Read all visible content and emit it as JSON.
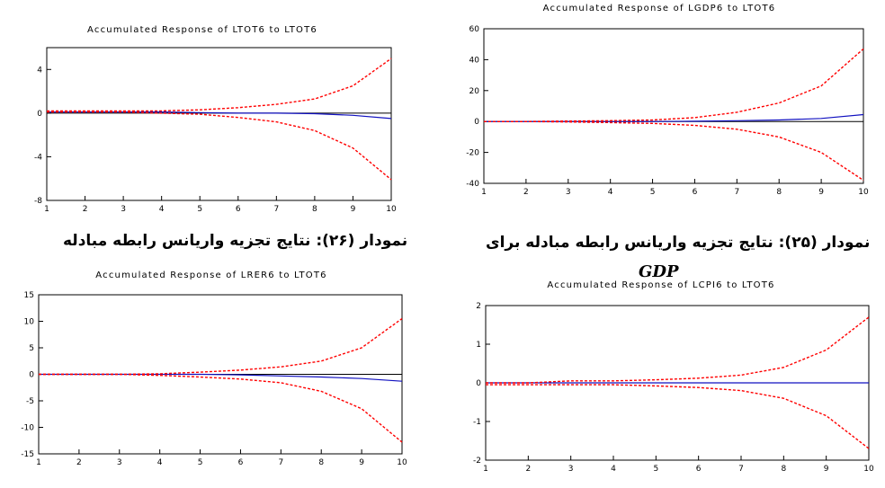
{
  "captions": {
    "left": "نمودار (۲۶): نتایج تجزیه واریانس رابطه مبادله",
    "right": "نمودار (۲۵): نتایج تجزیه واریانس رابطه مبادله  برای",
    "right_sub": "GDP"
  },
  "colors": {
    "response": "#1010c0",
    "band": "#ff0000",
    "axis": "#000000"
  },
  "chart_data": [
    {
      "type": "line",
      "title": "Accumulated Response of LTOT6 to LTOT6",
      "x": [
        1,
        2,
        3,
        4,
        5,
        6,
        7,
        8,
        9,
        10
      ],
      "xticks": [
        1,
        2,
        3,
        4,
        5,
        6,
        7,
        8,
        9,
        10
      ],
      "ylim": [
        -8,
        6
      ],
      "yticks": [
        -8,
        -4,
        0,
        4
      ],
      "series": [
        {
          "role": "response",
          "style": "solid",
          "values": [
            0.1,
            0.1,
            0.1,
            0.1,
            0.05,
            0.0,
            0.0,
            -0.05,
            -0.2,
            -0.5
          ]
        },
        {
          "role": "upper",
          "style": "dashed",
          "values": [
            0.2,
            0.2,
            0.2,
            0.2,
            0.3,
            0.5,
            0.8,
            1.3,
            2.5,
            5.0
          ]
        },
        {
          "role": "lower",
          "style": "dashed",
          "values": [
            0.1,
            0.1,
            0.1,
            0.0,
            -0.1,
            -0.4,
            -0.8,
            -1.6,
            -3.2,
            -6.1
          ]
        }
      ]
    },
    {
      "type": "line",
      "title": "Accumulated Response of LGDP6 to LTOT6",
      "x": [
        1,
        2,
        3,
        4,
        5,
        6,
        7,
        8,
        9,
        10
      ],
      "xticks": [
        1,
        2,
        3,
        4,
        5,
        6,
        7,
        8,
        9,
        10
      ],
      "ylim": [
        -40,
        60
      ],
      "yticks": [
        -40,
        -20,
        0,
        20,
        40,
        60
      ],
      "series": [
        {
          "role": "response",
          "style": "solid",
          "values": [
            0.0,
            0.0,
            0.0,
            0.0,
            0.0,
            0.2,
            0.5,
            1.0,
            2.0,
            4.5
          ]
        },
        {
          "role": "upper",
          "style": "dashed",
          "values": [
            0.0,
            0.0,
            0.3,
            0.5,
            1.0,
            2.5,
            6.0,
            12.0,
            23.0,
            47.0
          ]
        },
        {
          "role": "lower",
          "style": "dashed",
          "values": [
            0.0,
            0.0,
            -0.3,
            -0.7,
            -1.2,
            -2.5,
            -5.0,
            -10.0,
            -20.0,
            -38.0
          ]
        }
      ]
    },
    {
      "type": "line",
      "title": "Accumulated Response of LRER6 to LTOT6",
      "x": [
        1,
        2,
        3,
        4,
        5,
        6,
        7,
        8,
        9,
        10
      ],
      "xticks": [
        1,
        2,
        3,
        4,
        5,
        6,
        7,
        8,
        9,
        10
      ],
      "ylim": [
        -15,
        15
      ],
      "yticks": [
        -15,
        -10,
        -5,
        0,
        5,
        10,
        15
      ],
      "series": [
        {
          "role": "response",
          "style": "solid",
          "values": [
            0.0,
            0.0,
            0.0,
            0.0,
            0.0,
            -0.1,
            -0.3,
            -0.5,
            -0.8,
            -1.3
          ]
        },
        {
          "role": "upper",
          "style": "dashed",
          "values": [
            0.0,
            0.0,
            0.0,
            0.1,
            0.4,
            0.8,
            1.4,
            2.5,
            5.0,
            10.5
          ]
        },
        {
          "role": "lower",
          "style": "dashed",
          "values": [
            0.0,
            0.0,
            0.0,
            -0.2,
            -0.5,
            -0.9,
            -1.6,
            -3.2,
            -6.5,
            -12.8
          ]
        }
      ]
    },
    {
      "type": "line",
      "title": "Accumulated Response of LCPI6 to LTOT6",
      "x": [
        1,
        2,
        3,
        4,
        5,
        6,
        7,
        8,
        9,
        10
      ],
      "xticks": [
        1,
        2,
        3,
        4,
        5,
        6,
        7,
        8,
        9,
        10
      ],
      "ylim": [
        -2,
        2
      ],
      "yticks": [
        -2,
        -1,
        0,
        1,
        2
      ],
      "series": [
        {
          "role": "response",
          "style": "solid",
          "values": [
            0.0,
            0.0,
            0.0,
            0.0,
            0.0,
            0.0,
            0.0,
            0.0,
            0.0,
            0.0
          ]
        },
        {
          "role": "upper",
          "style": "dashed",
          "values": [
            0.0,
            0.0,
            0.05,
            0.05,
            0.08,
            0.12,
            0.2,
            0.4,
            0.85,
            1.7
          ]
        },
        {
          "role": "lower",
          "style": "dashed",
          "values": [
            -0.05,
            -0.05,
            -0.05,
            -0.05,
            -0.08,
            -0.12,
            -0.2,
            -0.4,
            -0.85,
            -1.7
          ]
        }
      ]
    }
  ]
}
